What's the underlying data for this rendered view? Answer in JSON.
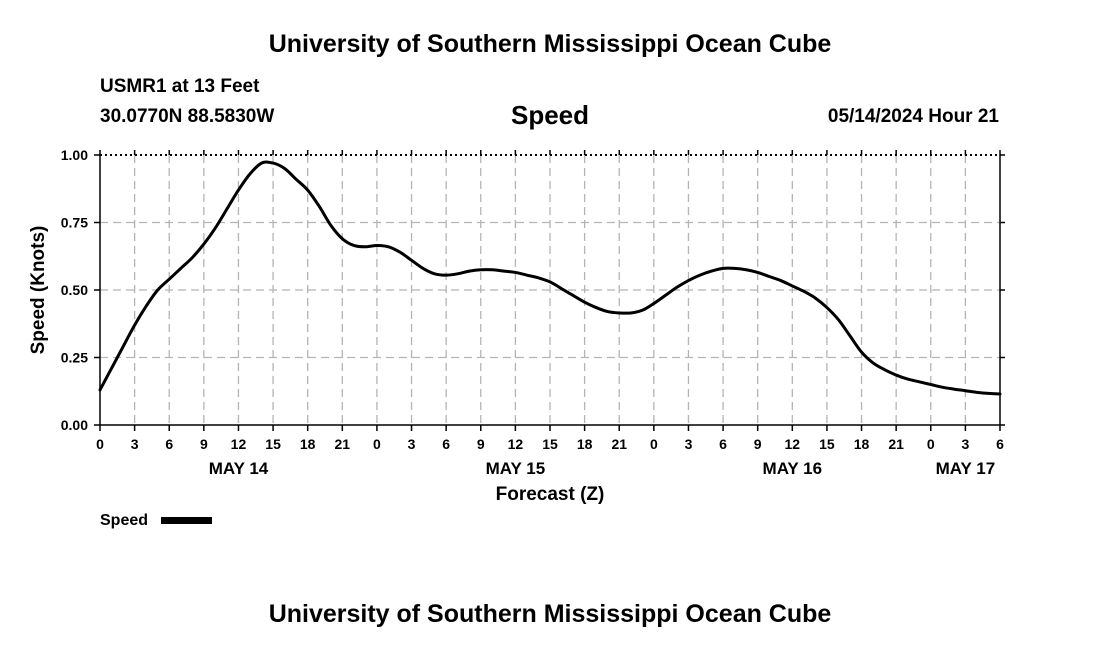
{
  "header": {
    "title": "University of Southern Mississippi Ocean Cube",
    "station": "USMR1 at 13 Feet",
    "coordinates": "30.0770N  88.5830W",
    "variable": "Speed",
    "datetime": "05/14/2024 Hour 21"
  },
  "footer": {
    "title": "University of Southern Mississippi Ocean Cube"
  },
  "chart_data": {
    "type": "line",
    "title": "Speed",
    "xlabel": "Forecast (Z)",
    "ylabel": "Speed (Knots)",
    "xlim": [
      0,
      78
    ],
    "ylim": [
      0,
      1
    ],
    "grid": true,
    "yticks": [
      0,
      0.25,
      0.5,
      0.75,
      1.0
    ],
    "ytick_labels": [
      "0.00",
      "0.25",
      "0.50",
      "0.75",
      "1.00"
    ],
    "xtick_labels": [
      "0",
      "3",
      "6",
      "9",
      "12",
      "15",
      "18",
      "21",
      "0",
      "3",
      "6",
      "9",
      "12",
      "15",
      "18",
      "21",
      "0",
      "3",
      "6",
      "9",
      "12",
      "15",
      "18",
      "21",
      "0",
      "3",
      "6"
    ],
    "day_labels": [
      {
        "hour": 12,
        "label": "MAY 14"
      },
      {
        "hour": 36,
        "label": "MAY 15"
      },
      {
        "hour": 60,
        "label": "MAY 16"
      },
      {
        "hour": 75,
        "label": "MAY 17"
      }
    ],
    "legend": {
      "position": "bottom-left",
      "entries": [
        "Speed"
      ]
    },
    "series": [
      {
        "name": "Speed",
        "color": "#000000",
        "x": [
          0,
          1,
          2,
          3,
          4,
          5,
          6,
          7,
          8,
          9,
          10,
          11,
          12,
          13,
          14,
          15,
          16,
          17,
          18,
          19,
          20,
          21,
          22,
          23,
          24,
          25,
          26,
          27,
          28,
          29,
          30,
          31,
          32,
          33,
          34,
          35,
          36,
          37,
          38,
          39,
          40,
          41,
          42,
          43,
          44,
          45,
          46,
          47,
          48,
          49,
          50,
          51,
          52,
          53,
          54,
          55,
          56,
          57,
          58,
          59,
          60,
          61,
          62,
          63,
          64,
          65,
          66,
          67,
          68,
          69,
          70,
          71,
          72,
          73,
          74,
          75,
          76,
          77,
          78
        ],
        "values": [
          0.13,
          0.21,
          0.29,
          0.37,
          0.44,
          0.5,
          0.54,
          0.58,
          0.62,
          0.67,
          0.73,
          0.8,
          0.87,
          0.93,
          0.97,
          0.97,
          0.95,
          0.91,
          0.87,
          0.81,
          0.74,
          0.69,
          0.665,
          0.66,
          0.665,
          0.66,
          0.64,
          0.61,
          0.58,
          0.56,
          0.555,
          0.56,
          0.57,
          0.575,
          0.575,
          0.57,
          0.565,
          0.555,
          0.545,
          0.53,
          0.505,
          0.48,
          0.455,
          0.435,
          0.42,
          0.415,
          0.415,
          0.425,
          0.45,
          0.48,
          0.51,
          0.535,
          0.555,
          0.57,
          0.58,
          0.58,
          0.575,
          0.565,
          0.55,
          0.535,
          0.515,
          0.495,
          0.47,
          0.435,
          0.39,
          0.33,
          0.27,
          0.23,
          0.205,
          0.185,
          0.17,
          0.16,
          0.15,
          0.14,
          0.133,
          0.127,
          0.121,
          0.117,
          0.115
        ]
      }
    ]
  }
}
